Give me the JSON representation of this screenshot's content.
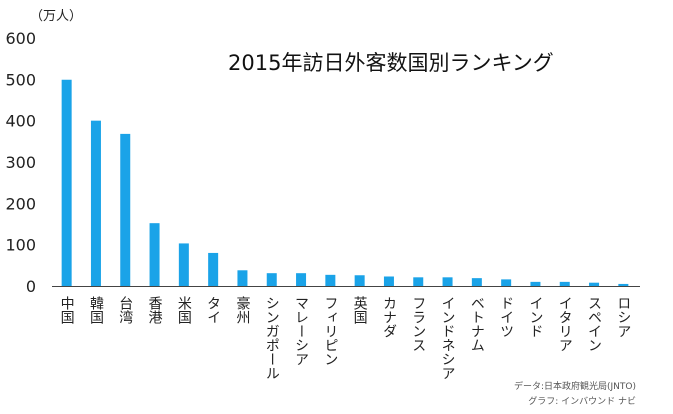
{
  "chart_data": {
    "type": "bar",
    "title": "2015年訪日外客数国別ランキング",
    "unit_label": "（万人）",
    "ylim": [
      0,
      600
    ],
    "yticks": [
      0,
      100,
      200,
      300,
      400,
      500,
      600
    ],
    "grid": false,
    "color": "#1aa3e8",
    "categories": [
      "中国",
      "韓国",
      "台湾",
      "香港",
      "米国",
      "タイ",
      "豪州",
      "シンガポール",
      "マレーシア",
      "フィリピン",
      "英国",
      "カナダ",
      "フランス",
      "インドネシア",
      "ベトナム",
      "ドイツ",
      "インド",
      "イタリア",
      "スペイン",
      "ロシア"
    ],
    "values": [
      499,
      400,
      368,
      152,
      103,
      80,
      38,
      31,
      31,
      27,
      26,
      23,
      21,
      21,
      19,
      16,
      10,
      10,
      8,
      5
    ]
  },
  "source_note": "データ:日本政府観光局(JNTO)",
  "credit_note": "グラフ: インバウンド ナビ"
}
